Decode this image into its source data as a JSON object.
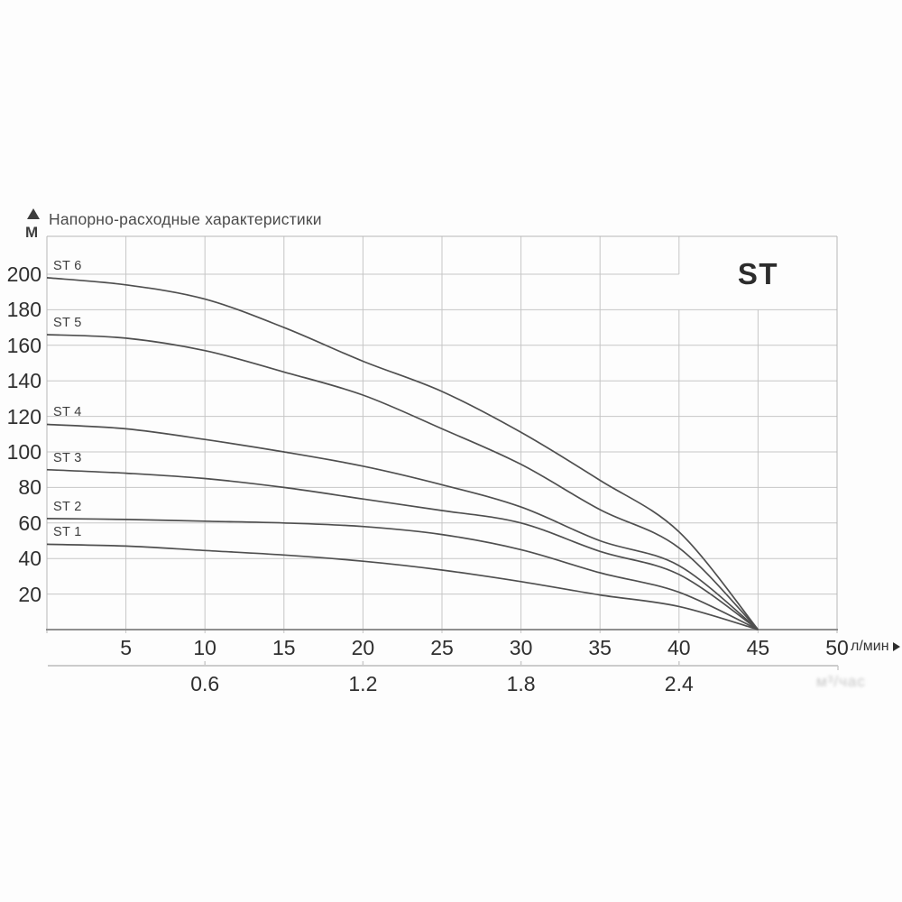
{
  "header": {
    "title": "Напорно-расходные характеристики",
    "head_axis_unit": "М",
    "axis_arrow_icon": "triangle-up",
    "flow_axis_unit": "л/мин",
    "flow_axis_arrow_icon": "triangle-right",
    "faded_secondary_unit": "м³/час"
  },
  "family_label": "ST",
  "colors": {
    "curve": "#4f4f4f",
    "grid": "#c6c6c6",
    "border": "#b6b6b6",
    "axis": "#8f8f8f",
    "secondary_axis": "#cbcbcb",
    "text": "#2f2f2f"
  },
  "chart_data": {
    "type": "line",
    "title": "Напорно-расходные характеристики",
    "xlabel": "л/мин",
    "x2label": "м³/час",
    "ylabel": "М",
    "xlim": [
      0,
      50
    ],
    "ylim": [
      0,
      221
    ],
    "grid": true,
    "x_ticks": [
      5,
      10,
      15,
      20,
      25,
      30,
      35,
      40,
      45,
      50
    ],
    "y_ticks": [
      20,
      40,
      60,
      80,
      100,
      120,
      140,
      160,
      180,
      200
    ],
    "x2_ticks": [
      0.6,
      1.2,
      1.8,
      2.4
    ],
    "x2_to_x_factor": 16.6667,
    "convergence_point": [
      45,
      0
    ],
    "series": [
      {
        "name": "ST 1",
        "points": [
          [
            0,
            48
          ],
          [
            5,
            47
          ],
          [
            10,
            44.5
          ],
          [
            15,
            42
          ],
          [
            20,
            38.5
          ],
          [
            25,
            33.5
          ],
          [
            30,
            27
          ],
          [
            35,
            19.5
          ],
          [
            40,
            13
          ],
          [
            45,
            0
          ]
        ]
      },
      {
        "name": "ST 2",
        "points": [
          [
            0,
            62.5
          ],
          [
            5,
            62
          ],
          [
            10,
            61
          ],
          [
            15,
            60
          ],
          [
            20,
            58
          ],
          [
            25,
            53.5
          ],
          [
            30,
            45
          ],
          [
            35,
            32
          ],
          [
            40,
            21
          ],
          [
            45,
            0
          ]
        ]
      },
      {
        "name": "ST 3",
        "points": [
          [
            0,
            90
          ],
          [
            5,
            88
          ],
          [
            10,
            85
          ],
          [
            15,
            80
          ],
          [
            20,
            73.5
          ],
          [
            25,
            67
          ],
          [
            30,
            60
          ],
          [
            35,
            44
          ],
          [
            40,
            31
          ],
          [
            45,
            0
          ]
        ]
      },
      {
        "name": "ST 4",
        "points": [
          [
            0,
            115.5
          ],
          [
            5,
            113
          ],
          [
            10,
            107
          ],
          [
            15,
            100
          ],
          [
            20,
            92
          ],
          [
            25,
            81.5
          ],
          [
            30,
            69
          ],
          [
            35,
            50
          ],
          [
            40,
            36
          ],
          [
            45,
            0
          ]
        ]
      },
      {
        "name": "ST 5",
        "points": [
          [
            0,
            166
          ],
          [
            5,
            164
          ],
          [
            10,
            157
          ],
          [
            15,
            145
          ],
          [
            20,
            132
          ],
          [
            25,
            113
          ],
          [
            30,
            93
          ],
          [
            35,
            67.5
          ],
          [
            40,
            46
          ],
          [
            45,
            0
          ]
        ]
      },
      {
        "name": "ST 6",
        "points": [
          [
            0,
            198
          ],
          [
            5,
            194
          ],
          [
            10,
            186
          ],
          [
            15,
            170
          ],
          [
            20,
            151
          ],
          [
            25,
            134
          ],
          [
            30,
            111
          ],
          [
            35,
            84
          ],
          [
            40,
            55
          ],
          [
            45,
            0
          ]
        ]
      }
    ]
  }
}
